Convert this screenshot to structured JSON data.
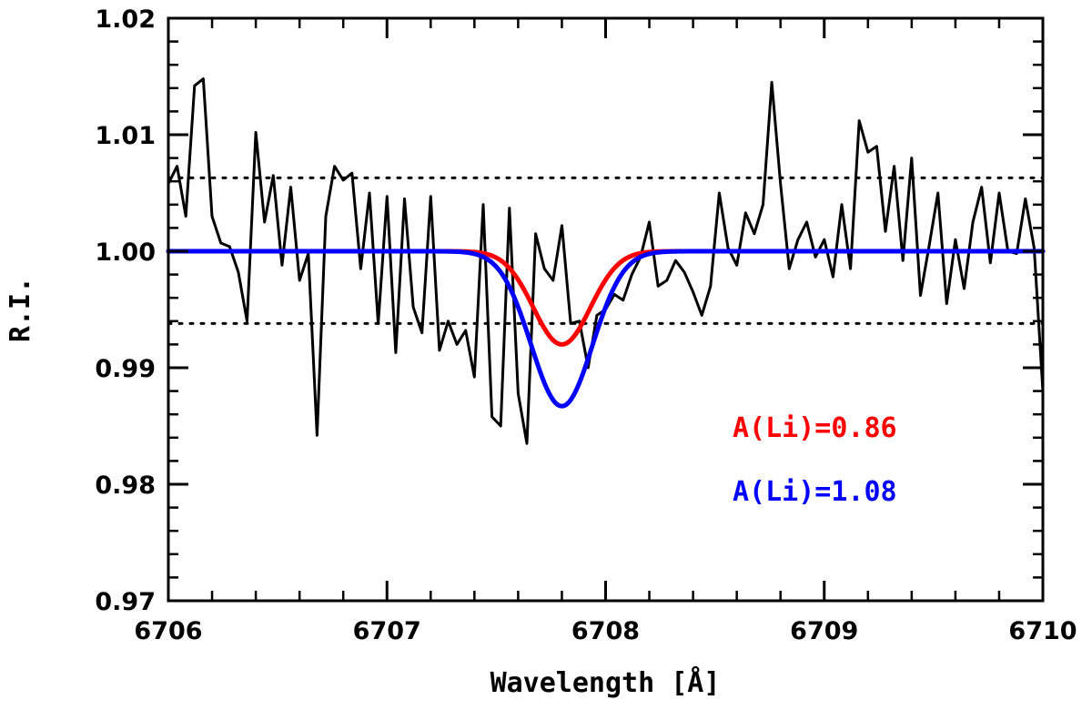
{
  "chart_data": {
    "type": "line",
    "xlabel": "Wavelength [Å]",
    "ylabel": "R.I.",
    "xlim": [
      6706,
      6710
    ],
    "ylim": [
      0.97,
      1.02
    ],
    "x_ticks": [
      6706,
      6707,
      6708,
      6709,
      6710
    ],
    "x_tick_labels": [
      "6706",
      "6707",
      "6708",
      "6709",
      "6710"
    ],
    "y_ticks": [
      0.97,
      0.98,
      0.99,
      1.0,
      1.01,
      1.02
    ],
    "y_tick_labels": [
      "0.97",
      "0.98",
      "0.99",
      "1.00",
      "1.01",
      "1.02"
    ],
    "grid": false,
    "reference_lines": [
      1.0063,
      0.9938
    ],
    "annotations": [
      {
        "text": "A(Li)=0.86",
        "color": "#ff0000"
      },
      {
        "text": "A(Li)=1.08",
        "color": "#0000ff"
      }
    ],
    "series": [
      {
        "color": "#000000",
        "style": "observed",
        "x": [
          6706.0,
          6706.04,
          6706.08,
          6706.12,
          6706.16,
          6706.2,
          6706.24,
          6706.28,
          6706.32,
          6706.36,
          6706.4,
          6706.44,
          6706.48,
          6706.52,
          6706.56,
          6706.6,
          6706.64,
          6706.68,
          6706.72,
          6706.76,
          6706.8,
          6706.84,
          6706.88,
          6706.92,
          6706.96,
          6707.0,
          6707.04,
          6707.08,
          6707.12,
          6707.16,
          6707.2,
          6707.24,
          6707.28,
          6707.32,
          6707.36,
          6707.4,
          6707.44,
          6707.48,
          6707.52,
          6707.56,
          6707.6,
          6707.64,
          6707.68,
          6707.72,
          6707.76,
          6707.8,
          6707.84,
          6707.88,
          6707.92,
          6707.96,
          6708.0,
          6708.04,
          6708.08,
          6708.12,
          6708.16,
          6708.2,
          6708.24,
          6708.28,
          6708.32,
          6708.36,
          6708.4,
          6708.44,
          6708.48,
          6708.52,
          6708.56,
          6708.6,
          6708.64,
          6708.68,
          6708.72,
          6708.76,
          6708.8,
          6708.84,
          6708.88,
          6708.92,
          6708.96,
          6709.0,
          6709.04,
          6709.08,
          6709.12,
          6709.16,
          6709.2,
          6709.24,
          6709.28,
          6709.32,
          6709.36,
          6709.4,
          6709.44,
          6709.48,
          6709.52,
          6709.56,
          6709.6,
          6709.64,
          6709.68,
          6709.72,
          6709.76,
          6709.8,
          6709.84,
          6709.88,
          6709.92,
          6709.96,
          6710.0
        ],
        "y": [
          1.0058,
          1.0073,
          1.003,
          1.0142,
          1.0148,
          1.003,
          1.0007,
          1.0004,
          0.9982,
          0.994,
          1.0102,
          1.0025,
          1.0065,
          0.9988,
          1.0055,
          0.9975,
          0.9998,
          0.9842,
          1.003,
          1.0073,
          1.0061,
          1.0067,
          0.9985,
          1.005,
          0.9938,
          1.0047,
          0.9913,
          1.0045,
          0.9952,
          0.993,
          1.0047,
          0.9915,
          0.994,
          0.992,
          0.9932,
          0.9892,
          1.004,
          0.9858,
          0.985,
          1.0037,
          0.9878,
          0.9835,
          1.0015,
          0.9985,
          0.9975,
          1.0022,
          0.9938,
          0.994,
          0.99,
          0.9945,
          0.995,
          0.9963,
          0.9958,
          0.998,
          0.9995,
          1.0025,
          0.997,
          0.9975,
          0.9992,
          0.9982,
          0.9965,
          0.9945,
          0.997,
          1.005,
          1.0003,
          0.9988,
          1.0033,
          1.0015,
          1.004,
          1.0145,
          1.0058,
          0.9985,
          1.001,
          1.0025,
          0.9995,
          1.001,
          0.9978,
          1.004,
          0.9985,
          1.0112,
          1.0085,
          1.009,
          1.0017,
          1.0073,
          0.9992,
          1.008,
          0.9962,
          1.0005,
          1.005,
          0.9955,
          1.001,
          0.9968,
          1.0025,
          1.0055,
          0.999,
          1.005,
          1.0,
          0.9998,
          1.0045,
          1.0003,
          0.988
        ]
      },
      {
        "color": "#ff0000",
        "style": "model",
        "depth": 0.008,
        "center": 6707.8,
        "sigma": 0.13
      },
      {
        "color": "#0000ff",
        "style": "model",
        "depth": 0.0133,
        "center": 6707.8,
        "sigma": 0.14
      }
    ]
  }
}
